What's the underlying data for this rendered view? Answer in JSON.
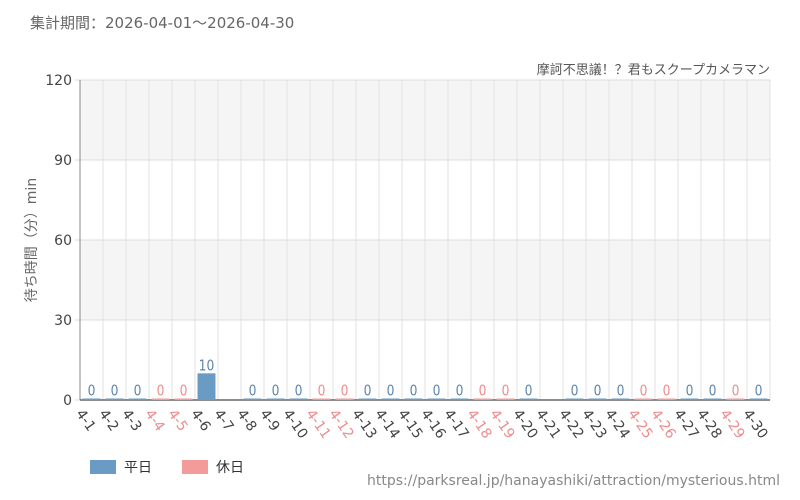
{
  "header": {
    "period_label": "集計期間：2026-04-01～2026-04-30",
    "attraction_name": "摩訶不思議！？君もスクープカメラマン"
  },
  "legend": {
    "weekday_label": "平日",
    "holiday_label": "休日"
  },
  "footer": {
    "source_url": "https://parksreal.jp/hanayashiki/attraction/mysterious.html"
  },
  "colors": {
    "weekday": "#6a9bc4",
    "holiday": "#f39a9a",
    "weekday_text": "#5f86ad",
    "holiday_text": "#f08c8c",
    "grid": "#e2e2e2",
    "band": "#f5f5f5"
  },
  "chart_data": {
    "type": "bar",
    "ylabel": "待ち時間（分）min",
    "ylim": [
      0,
      120
    ],
    "yticks": [
      0,
      30,
      60,
      90,
      120
    ],
    "grid": true,
    "legend_position": "bottom-left",
    "categories": [
      "4-1",
      "4-2",
      "4-3",
      "4-4",
      "4-5",
      "4-6",
      "4-7",
      "4-8",
      "4-9",
      "4-10",
      "4-11",
      "4-12",
      "4-13",
      "4-14",
      "4-15",
      "4-16",
      "4-17",
      "4-18",
      "4-19",
      "4-20",
      "4-21",
      "4-22",
      "4-23",
      "4-24",
      "4-25",
      "4-26",
      "4-27",
      "4-28",
      "4-29",
      "4-30"
    ],
    "day_type": [
      "weekday",
      "weekday",
      "weekday",
      "holiday",
      "holiday",
      "weekday",
      "weekday",
      "weekday",
      "weekday",
      "weekday",
      "holiday",
      "holiday",
      "weekday",
      "weekday",
      "weekday",
      "weekday",
      "weekday",
      "holiday",
      "holiday",
      "weekday",
      "weekday",
      "weekday",
      "weekday",
      "weekday",
      "holiday",
      "holiday",
      "weekday",
      "weekday",
      "holiday",
      "weekday"
    ],
    "values": [
      0,
      0,
      0,
      0,
      0,
      10,
      null,
      0,
      0,
      0,
      0,
      0,
      0,
      0,
      0,
      0,
      0,
      0,
      0,
      0,
      null,
      0,
      0,
      0,
      0,
      0,
      0,
      0,
      0,
      0
    ]
  }
}
